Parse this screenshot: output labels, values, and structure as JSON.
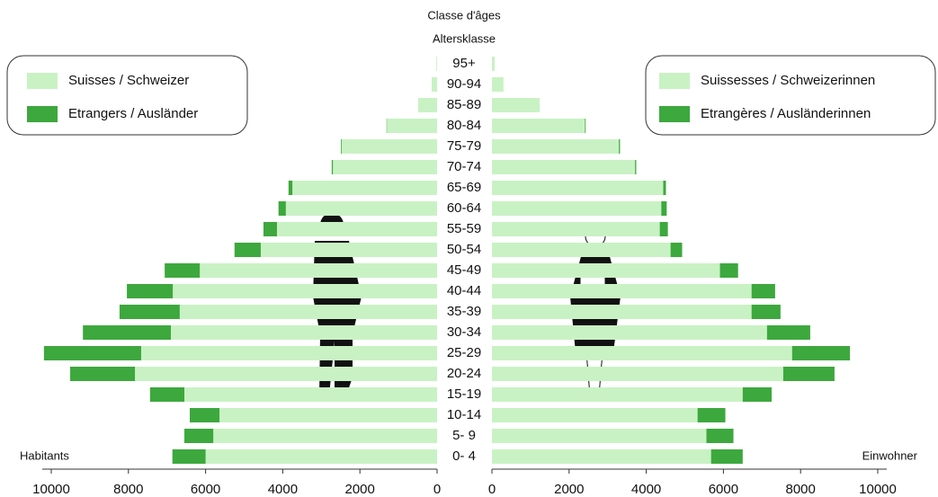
{
  "chart_data": {
    "type": "pyramid",
    "header": [
      "Classe d'âges",
      "Altersklasse"
    ],
    "left_label": "Habitants",
    "right_label": "Einwohner",
    "categories": [
      "0- 4",
      "5- 9",
      "10-14",
      "15-19",
      "20-24",
      "25-29",
      "30-34",
      "35-39",
      "40-44",
      "45-49",
      "50-54",
      "55-59",
      "60-64",
      "65-69",
      "70-74",
      "75-79",
      "80-84",
      "85-89",
      "90-94",
      "95+"
    ],
    "xlim": [
      0,
      10000
    ],
    "xticks": [
      0,
      2000,
      4000,
      6000,
      8000,
      10000
    ],
    "series": [
      {
        "name": "Suisses / Schweizer",
        "side": "left",
        "color": "#c9f2c4",
        "values": [
          6000,
          5800,
          5640,
          6550,
          7830,
          7670,
          6900,
          6670,
          6850,
          6150,
          4570,
          4150,
          3920,
          3750,
          2700,
          2470,
          1300,
          490,
          140,
          20
        ]
      },
      {
        "name": "Etrangers / Ausländer",
        "side": "left",
        "color": "#3da83d",
        "values": [
          860,
          750,
          770,
          890,
          1680,
          2520,
          2280,
          1560,
          1190,
          910,
          680,
          350,
          190,
          100,
          30,
          20,
          10,
          0,
          0,
          0
        ]
      },
      {
        "name": "Suissesses / Schweizerinnen",
        "side": "right",
        "color": "#c9f2c4",
        "values": [
          5680,
          5560,
          5330,
          6500,
          7550,
          7780,
          7130,
          6730,
          6730,
          5910,
          4630,
          4350,
          4390,
          4440,
          3710,
          3290,
          2410,
          1240,
          300,
          70
        ]
      },
      {
        "name": "Etrangères / Ausländerinnen",
        "side": "right",
        "color": "#3da83d",
        "values": [
          820,
          700,
          720,
          750,
          1330,
          1500,
          1120,
          750,
          610,
          470,
          300,
          210,
          140,
          70,
          30,
          30,
          20,
          0,
          0,
          0
        ]
      }
    ]
  }
}
